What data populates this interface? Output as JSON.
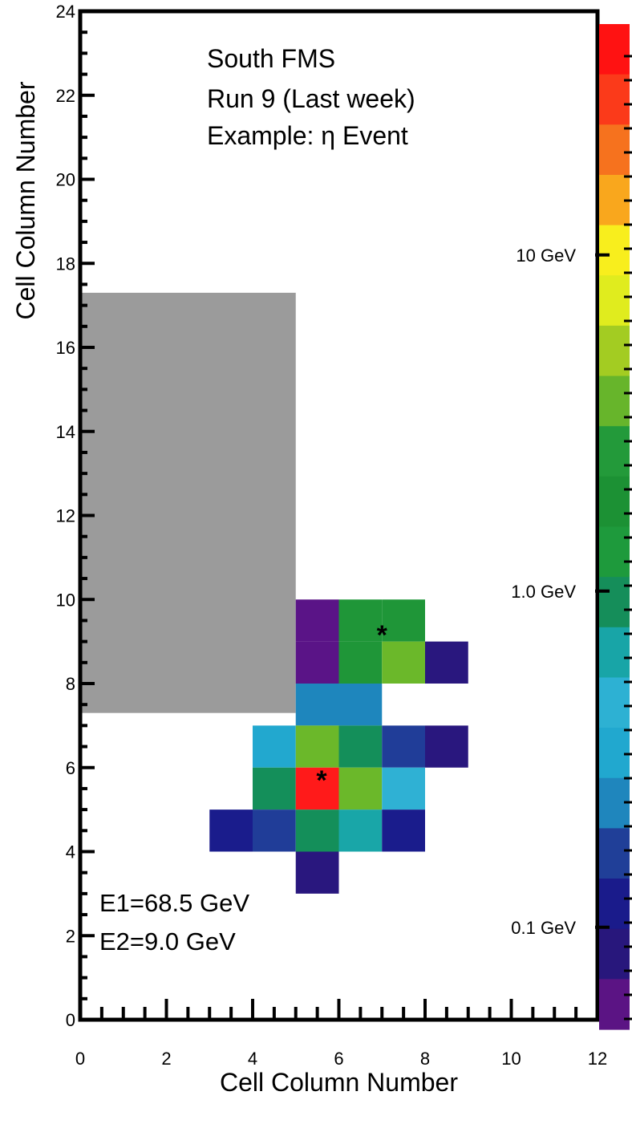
{
  "chart_data": {
    "type": "heatmap",
    "title_lines": [
      "South FMS",
      "Run 9 (Last week)",
      "Example:  η Event"
    ],
    "xlabel": "Cell Column Number",
    "ylabel": "Cell Column Number",
    "xlim": [
      0,
      12
    ],
    "ylim": [
      0,
      24
    ],
    "x_tick_labels": [
      "0",
      "2",
      "4",
      "6",
      "8",
      "10",
      "12"
    ],
    "y_tick_labels": [
      "0",
      "2",
      "4",
      "6",
      "8",
      "10",
      "12",
      "14",
      "16",
      "18",
      "20",
      "22",
      "24"
    ],
    "grid": false,
    "blocked_region": {
      "x": [
        0,
        5
      ],
      "y": [
        7.3,
        17.3
      ],
      "color": "#9b9b9b"
    },
    "cells": [
      {
        "x": 5,
        "y": 9,
        "color": "#5a1487"
      },
      {
        "x": 6,
        "y": 9,
        "color": "#1f9638"
      },
      {
        "x": 7,
        "y": 9,
        "color": "#1f9638"
      },
      {
        "x": 5,
        "y": 8,
        "color": "#5a1487"
      },
      {
        "x": 6,
        "y": 8,
        "color": "#1f9638"
      },
      {
        "x": 7,
        "y": 8,
        "color": "#6bb82a"
      },
      {
        "x": 8,
        "y": 8,
        "color": "#29177e"
      },
      {
        "x": 5,
        "y": 7,
        "color": "#1e86bd"
      },
      {
        "x": 6,
        "y": 7,
        "color": "#1e86bd"
      },
      {
        "x": 4,
        "y": 6,
        "color": "#22a8cf"
      },
      {
        "x": 5,
        "y": 6,
        "color": "#6bb82a"
      },
      {
        "x": 6,
        "y": 6,
        "color": "#148f5a"
      },
      {
        "x": 7,
        "y": 6,
        "color": "#203d98"
      },
      {
        "x": 8,
        "y": 6,
        "color": "#29177e"
      },
      {
        "x": 4,
        "y": 5,
        "color": "#148f5a"
      },
      {
        "x": 5,
        "y": 5,
        "color": "#ff1a1a"
      },
      {
        "x": 6,
        "y": 5,
        "color": "#6bb82a"
      },
      {
        "x": 7,
        "y": 5,
        "color": "#2fb1d4"
      },
      {
        "x": 3,
        "y": 4,
        "color": "#1a1c8c"
      },
      {
        "x": 4,
        "y": 4,
        "color": "#203d98"
      },
      {
        "x": 5,
        "y": 4,
        "color": "#148f5a"
      },
      {
        "x": 6,
        "y": 4,
        "color": "#19a6a8"
      },
      {
        "x": 7,
        "y": 4,
        "color": "#1a1c8c"
      },
      {
        "x": 5,
        "y": 3,
        "color": "#29177e"
      }
    ],
    "markers": [
      {
        "x": 7.0,
        "y": 9.2,
        "symbol": "*"
      },
      {
        "x": 5.6,
        "y": 5.75,
        "symbol": "*"
      }
    ],
    "energies": [
      "E1=68.5 GeV",
      "E2=9.0 GeV"
    ],
    "color_scale": {
      "colors": [
        "#ff1212",
        "#fb3a1a",
        "#f6721e",
        "#f9a71d",
        "#f8ee1d",
        "#e0ec1e",
        "#a3cc22",
        "#67b52b",
        "#239a3a",
        "#1c9134",
        "#1e9a3c",
        "#158e5a",
        "#18a5a7",
        "#2db1d3",
        "#21a8cf",
        "#1f86bd",
        "#203f98",
        "#1a1b8b",
        "#28177c",
        "#5b1484"
      ],
      "labels": [
        {
          "text": "10 GeV",
          "level": 18.2
        },
        {
          "text": "1.0 GeV",
          "level": 10.2
        },
        {
          "text": "0.1 GeV",
          "level": 2.2
        }
      ]
    }
  }
}
